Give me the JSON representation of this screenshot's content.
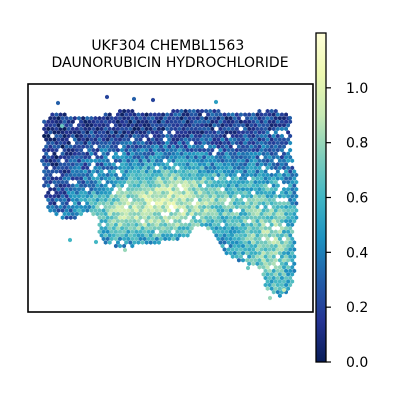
{
  "chart_data": {
    "type": "scatter",
    "title": "UKF304 CHEMBL1563\nDAUNORUBICIN HYDROCHLORIDE",
    "xlabel": "",
    "ylabel": "",
    "axes_ticks_visible": false,
    "grid": false,
    "marker": "hexagon",
    "colormap": "YlGnBu_r",
    "colorbar": {
      "location": "right",
      "vmin": 0.0,
      "vmax": 1.2,
      "ticks": [
        0.0,
        0.2,
        0.4,
        0.6,
        0.8,
        1.0
      ],
      "tick_labels": [
        "0.0",
        "0.2",
        "0.4",
        "0.6",
        "0.8",
        "1.0"
      ]
    },
    "value_summary": {
      "upper_band": "0.2-0.4",
      "lower_center": "0.6-1.0",
      "right_lower_lobe": "0.5-0.9",
      "left_edge": "0.1-0.3"
    }
  }
}
